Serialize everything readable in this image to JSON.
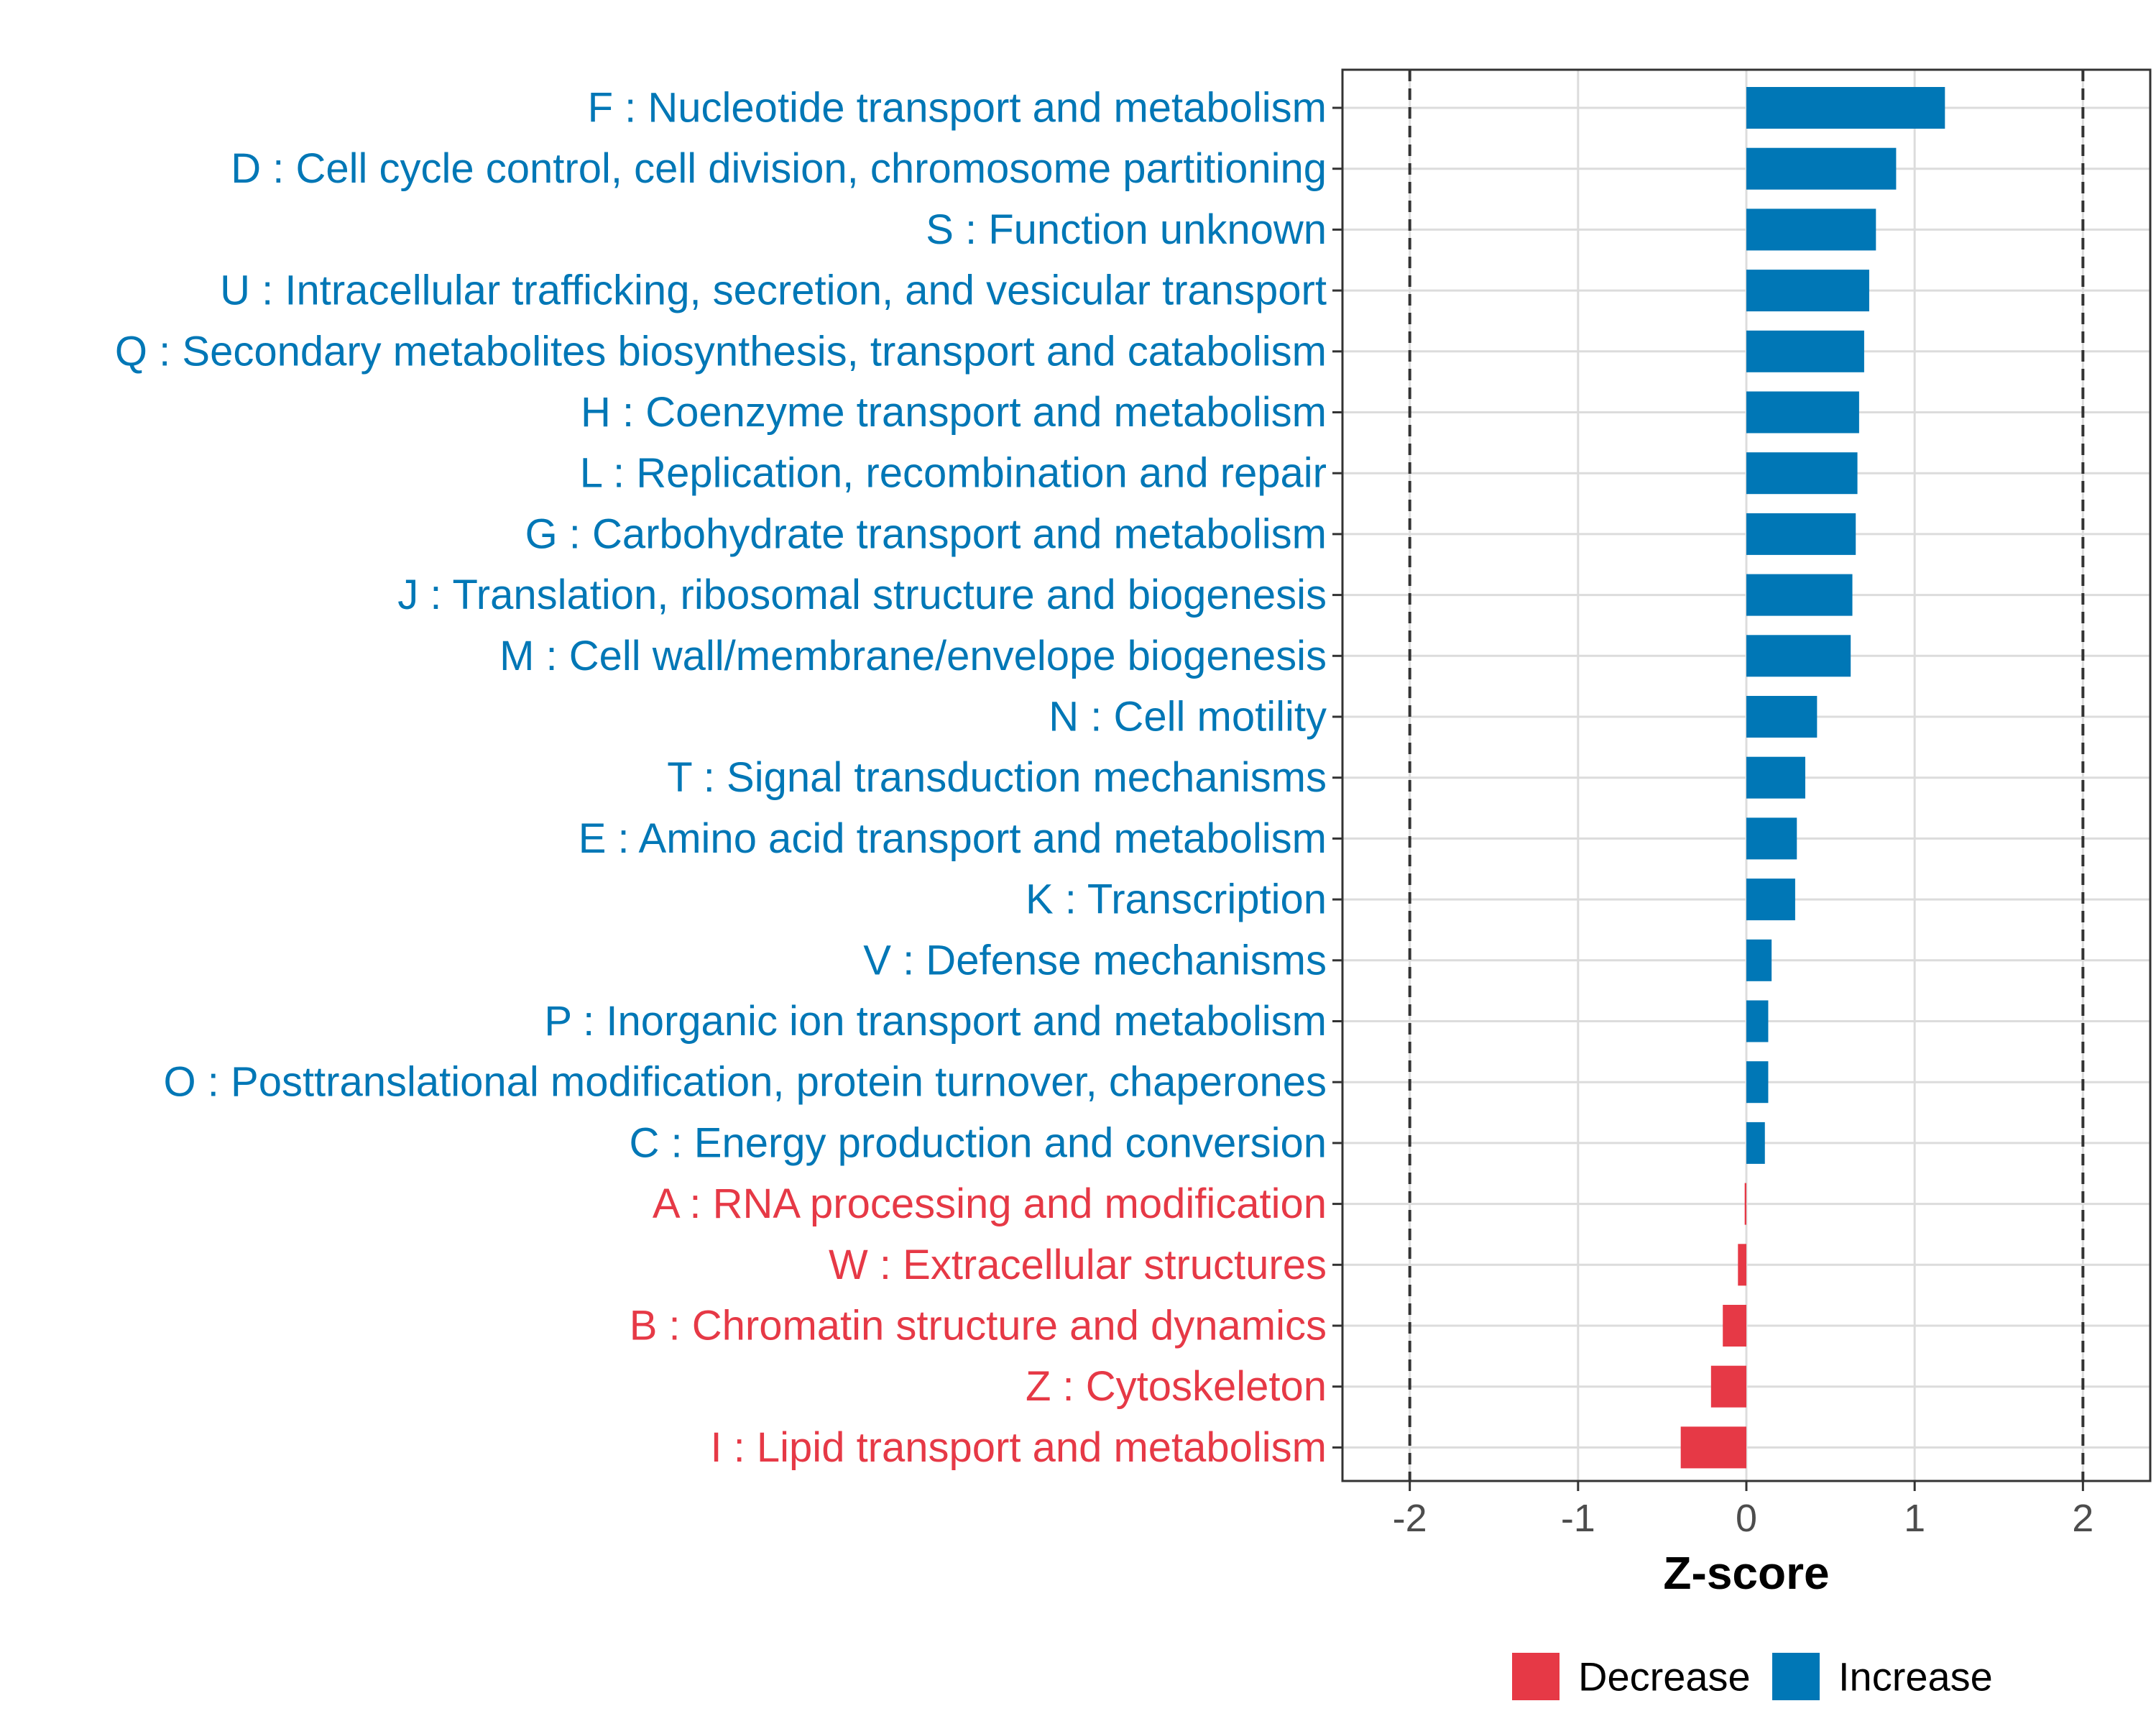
{
  "chart_data": {
    "type": "bar",
    "orientation": "horizontal",
    "xlabel": "Z-score",
    "ylabel": "",
    "xlim": [
      -2.4,
      2.4
    ],
    "x_ticks": [
      -2,
      -1,
      0,
      1,
      2
    ],
    "x_tick_labels": [
      "-2",
      "-1",
      "0",
      "1",
      "2"
    ],
    "reference_lines": [
      -2,
      2
    ],
    "grid": true,
    "legend_position": "bottom",
    "colors": {
      "Decrease": "#E63946",
      "Increase": "#0077B6"
    },
    "legend": [
      {
        "name": "Decrease",
        "color": "#E63946"
      },
      {
        "name": "Increase",
        "color": "#0077B6"
      }
    ],
    "bars": [
      {
        "label": "F : Nucleotide transport and metabolism",
        "value": 1.18,
        "group": "Increase"
      },
      {
        "label": "D : Cell cycle control, cell division, chromosome partitioning",
        "value": 0.89,
        "group": "Increase"
      },
      {
        "label": "S : Function unknown",
        "value": 0.77,
        "group": "Increase"
      },
      {
        "label": "U : Intracellular trafficking, secretion, and vesicular transport",
        "value": 0.73,
        "group": "Increase"
      },
      {
        "label": "Q : Secondary metabolites biosynthesis, transport and catabolism",
        "value": 0.7,
        "group": "Increase"
      },
      {
        "label": "H : Coenzyme transport and metabolism",
        "value": 0.67,
        "group": "Increase"
      },
      {
        "label": "L : Replication, recombination and repair",
        "value": 0.66,
        "group": "Increase"
      },
      {
        "label": "G : Carbohydrate transport and metabolism",
        "value": 0.65,
        "group": "Increase"
      },
      {
        "label": "J : Translation, ribosomal structure and biogenesis",
        "value": 0.63,
        "group": "Increase"
      },
      {
        "label": "M : Cell wall/membrane/envelope biogenesis",
        "value": 0.62,
        "group": "Increase"
      },
      {
        "label": "N : Cell motility",
        "value": 0.42,
        "group": "Increase"
      },
      {
        "label": "T : Signal transduction mechanisms",
        "value": 0.35,
        "group": "Increase"
      },
      {
        "label": "E : Amino acid transport and metabolism",
        "value": 0.3,
        "group": "Increase"
      },
      {
        "label": "K : Transcription",
        "value": 0.29,
        "group": "Increase"
      },
      {
        "label": "V : Defense mechanisms",
        "value": 0.15,
        "group": "Increase"
      },
      {
        "label": "P : Inorganic ion transport and metabolism",
        "value": 0.13,
        "group": "Increase"
      },
      {
        "label": "O : Posttranslational modification, protein turnover, chaperones",
        "value": 0.13,
        "group": "Increase"
      },
      {
        "label": "C : Energy production and conversion",
        "value": 0.11,
        "group": "Increase"
      },
      {
        "label": "A : RNA processing and modification",
        "value": -0.01,
        "group": "Decrease"
      },
      {
        "label": "W : Extracellular structures",
        "value": -0.05,
        "group": "Decrease"
      },
      {
        "label": "B : Chromatin structure and dynamics",
        "value": -0.14,
        "group": "Decrease"
      },
      {
        "label": "Z : Cytoskeleton",
        "value": -0.21,
        "group": "Decrease"
      },
      {
        "label": "I : Lipid transport and metabolism",
        "value": -0.39,
        "group": "Decrease"
      }
    ]
  }
}
